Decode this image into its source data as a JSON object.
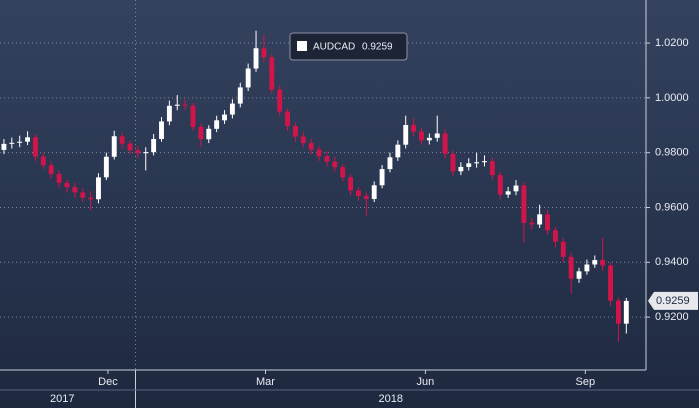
{
  "chart_data": {
    "type": "candlestick",
    "series": [
      {
        "name": "AUDCAD",
        "up_color": "#ffffff",
        "down_color": "#d2144a",
        "open": [
          0.981,
          0.9832,
          0.9836,
          0.984,
          0.9856,
          0.9786,
          0.9754,
          0.9722,
          0.969,
          0.9674,
          0.9655,
          0.9636,
          0.963,
          0.971,
          0.9785,
          0.986,
          0.9833,
          0.9809,
          0.9798,
          0.9802,
          0.985,
          0.9914,
          0.9971,
          0.9975,
          0.9971,
          0.9894,
          0.9849,
          0.9887,
          0.9918,
          0.9939,
          0.9979,
          1.0038,
          1.0107,
          1.0181,
          1.0148,
          1.003,
          0.995,
          0.9897,
          0.9859,
          0.9835,
          0.9811,
          0.9787,
          0.9767,
          0.9747,
          0.971,
          0.9662,
          0.9642,
          0.9631,
          0.9681,
          0.974,
          0.9783,
          0.9829,
          0.9901,
          0.9877,
          0.9845,
          0.9854,
          0.987,
          0.9795,
          0.9732,
          0.9748,
          0.9761,
          0.9765,
          0.9769,
          0.9718,
          0.9647,
          0.9659,
          0.968,
          0.9544,
          0.9538,
          0.9575,
          0.9517,
          0.9475,
          0.942,
          0.934,
          0.9367,
          0.9392,
          0.9408,
          0.9388,
          0.926,
          0.9176
        ],
        "high": [
          0.985,
          0.9855,
          0.9862,
          0.9878,
          0.9868,
          0.98,
          0.9768,
          0.9735,
          0.9702,
          0.969,
          0.967,
          0.966,
          0.9725,
          0.98,
          0.988,
          0.9872,
          0.9845,
          0.9825,
          0.982,
          0.9868,
          0.993,
          0.999,
          1.001,
          0.9995,
          0.9982,
          0.9905,
          0.99,
          0.9935,
          0.9955,
          0.9995,
          1.0055,
          1.0125,
          1.0245,
          1.023,
          1.016,
          1.0045,
          0.9962,
          0.991,
          0.9875,
          0.985,
          0.9825,
          0.9805,
          0.9785,
          0.976,
          0.9722,
          0.9675,
          0.9655,
          0.9695,
          0.9755,
          0.98,
          0.9845,
          0.9935,
          0.9925,
          0.989,
          0.987,
          0.9935,
          0.9885,
          0.9808,
          0.9765,
          0.978,
          0.98,
          0.979,
          0.9782,
          0.973,
          0.9675,
          0.97,
          0.9692,
          0.956,
          0.961,
          0.959,
          0.953,
          0.949,
          0.9435,
          0.938,
          0.941,
          0.9425,
          0.949,
          0.94,
          0.9272,
          0.927
        ],
        "low": [
          0.9795,
          0.9815,
          0.982,
          0.9828,
          0.977,
          0.974,
          0.9705,
          0.9672,
          0.9655,
          0.9635,
          0.962,
          0.959,
          0.9615,
          0.97,
          0.9775,
          0.9815,
          0.9795,
          0.978,
          0.9735,
          0.979,
          0.984,
          0.99,
          0.9955,
          0.9955,
          0.988,
          0.982,
          0.9835,
          0.9875,
          0.9905,
          0.9925,
          0.9965,
          1.0025,
          1.0095,
          1.013,
          1.0015,
          0.9935,
          0.988,
          0.984,
          0.982,
          0.9795,
          0.977,
          0.975,
          0.973,
          0.9695,
          0.9645,
          0.9625,
          0.957,
          0.962,
          0.967,
          0.9728,
          0.977,
          0.9815,
          0.986,
          0.9828,
          0.983,
          0.984,
          0.978,
          0.9715,
          0.9718,
          0.9735,
          0.9745,
          0.975,
          0.97,
          0.963,
          0.9635,
          0.9645,
          0.947,
          0.952,
          0.9525,
          0.95,
          0.9455,
          0.94,
          0.9285,
          0.9325,
          0.9355,
          0.938,
          0.937,
          0.924,
          0.911,
          0.914
        ],
        "close": [
          0.9832,
          0.9836,
          0.984,
          0.9856,
          0.9786,
          0.9754,
          0.9722,
          0.969,
          0.9674,
          0.9655,
          0.9636,
          0.963,
          0.971,
          0.9785,
          0.986,
          0.9833,
          0.9809,
          0.9798,
          0.9802,
          0.985,
          0.9914,
          0.9971,
          0.9975,
          0.9971,
          0.9894,
          0.9849,
          0.9887,
          0.9918,
          0.9939,
          0.9979,
          1.0038,
          1.0107,
          1.0181,
          1.0148,
          1.003,
          0.995,
          0.9897,
          0.9859,
          0.9835,
          0.9811,
          0.9787,
          0.9767,
          0.9747,
          0.971,
          0.9662,
          0.9642,
          0.9631,
          0.9681,
          0.974,
          0.9783,
          0.9829,
          0.9901,
          0.9877,
          0.9845,
          0.9854,
          0.987,
          0.9795,
          0.9732,
          0.9748,
          0.9761,
          0.9765,
          0.9769,
          0.9718,
          0.9647,
          0.9659,
          0.968,
          0.9544,
          0.9538,
          0.9575,
          0.9517,
          0.9475,
          0.942,
          0.934,
          0.9367,
          0.9392,
          0.9408,
          0.9388,
          0.926,
          0.9176,
          0.9259
        ]
      }
    ],
    "xlim": [
      -0.5,
      81.5
    ],
    "xticks": [
      {
        "value": 13.2,
        "label": "Dec"
      },
      {
        "value": 33.2,
        "label": "Mar"
      },
      {
        "value": 53.5,
        "label": "Jun"
      },
      {
        "value": 73.8,
        "label": "Sep"
      }
    ],
    "year_ticks": [
      {
        "value": 7.4,
        "label": "2017"
      },
      {
        "value": 49.1,
        "label": "2018"
      }
    ],
    "year_boundaries": [
      16.7
    ],
    "ylim": [
      0.9007,
      1.0357
    ],
    "yticks": [
      {
        "value": 0.92,
        "label": "0.9200"
      },
      {
        "value": 0.94,
        "label": "0.9400"
      },
      {
        "value": 0.96,
        "label": "0.9600"
      },
      {
        "value": 0.98,
        "label": "0.9800"
      },
      {
        "value": 1.0,
        "label": "1.0000"
      },
      {
        "value": 1.02,
        "label": "1.0200"
      }
    ],
    "grid": true
  }
}
